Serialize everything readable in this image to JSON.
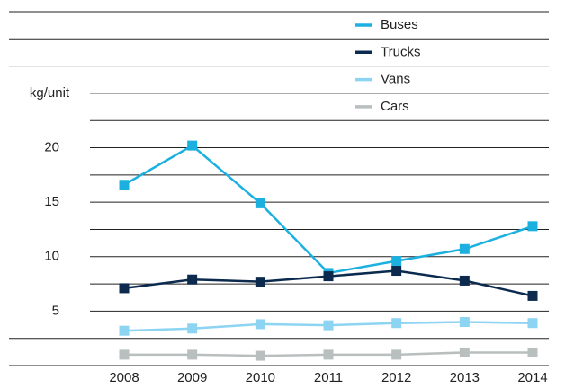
{
  "chart_data": {
    "type": "line",
    "y_label": "kg/unit",
    "x": [
      "2008",
      "2009",
      "2010",
      "2011",
      "2012",
      "2013",
      "2014"
    ],
    "series": [
      {
        "name": "Buses",
        "color": "#1bb0e0",
        "values": [
          16.6,
          20.2,
          14.9,
          8.5,
          9.6,
          10.7,
          12.8
        ]
      },
      {
        "name": "Trucks",
        "color": "#0b2a4e",
        "values": [
          7.1,
          7.9,
          7.7,
          8.2,
          8.7,
          7.8,
          6.4
        ]
      },
      {
        "name": "Vans",
        "color": "#8dd3f2",
        "values": [
          3.2,
          3.4,
          3.8,
          3.7,
          3.9,
          4.0,
          3.9
        ]
      },
      {
        "name": "Cars",
        "color": "#b9bfbf",
        "values": [
          1.0,
          1.0,
          0.9,
          1.0,
          1.0,
          1.2,
          1.2
        ]
      }
    ],
    "ylim": [
      0,
      32.5
    ],
    "yticks": [
      5,
      10,
      15,
      20
    ],
    "grid_lines": [
      0,
      2.5,
      5,
      7.5,
      10,
      12.5,
      15,
      17.5,
      20,
      22.5,
      25,
      27.5,
      30,
      32.5
    ],
    "legend": "top-right"
  }
}
